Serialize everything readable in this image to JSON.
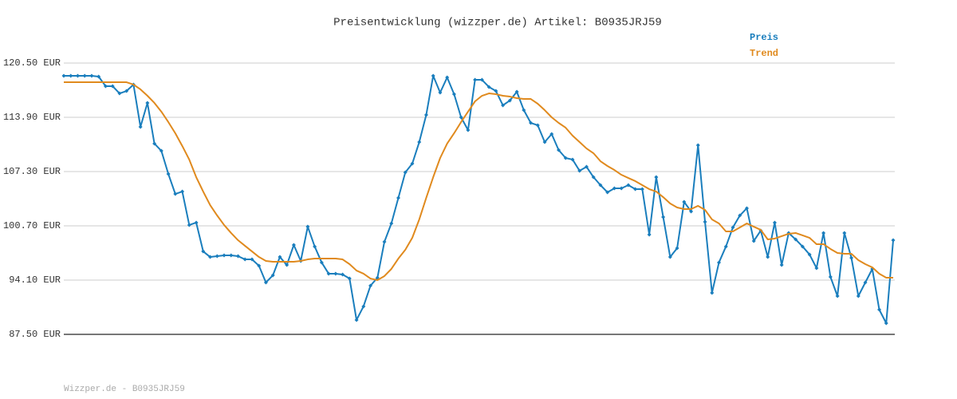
{
  "chart_data": {
    "type": "line",
    "title": "Preisentwicklung (wizzper.de) Artikel: B0935JRJ59",
    "series": [
      {
        "name": "Preis",
        "color": "#1a7ebd",
        "markers": true,
        "values": [
          118.95,
          118.95,
          118.95,
          118.95,
          118.95,
          118.85,
          117.69,
          117.69,
          116.81,
          117.1,
          117.88,
          112.74,
          115.65,
          110.7,
          109.82,
          107.01,
          104.58,
          104.87,
          100.8,
          101.09,
          97.59,
          96.91,
          97.01,
          97.11,
          97.11,
          97.01,
          96.62,
          96.62,
          95.85,
          93.81,
          94.68,
          96.91,
          95.94,
          98.37,
          96.43,
          100.6,
          98.18,
          96.24,
          94.88,
          94.88,
          94.78,
          94.29,
          89.25,
          90.9,
          93.42,
          94.39,
          98.76,
          100.99,
          104.1,
          107.2,
          108.27,
          110.89,
          114.19,
          118.95,
          116.91,
          118.75,
          116.72,
          113.9,
          112.35,
          118.46,
          118.46,
          117.59,
          117.1,
          115.36,
          115.94,
          117.01,
          114.77,
          113.22,
          112.93,
          110.89,
          111.86,
          109.92,
          108.95,
          108.76,
          107.4,
          107.88,
          106.62,
          105.65,
          104.78,
          105.26,
          105.26,
          105.65,
          105.16,
          105.16,
          99.63,
          106.62,
          101.77,
          96.91,
          97.98,
          103.61,
          102.45,
          110.5,
          101.19,
          92.55,
          96.24,
          98.18,
          100.51,
          101.96,
          102.84,
          98.86,
          100.12,
          96.91,
          101.09,
          95.94,
          99.83,
          99.05,
          98.18,
          97.21,
          95.56,
          99.83,
          94.49,
          92.16,
          99.83,
          96.81,
          92.16,
          93.81,
          95.46,
          90.51,
          88.86,
          98.95
        ]
      },
      {
        "name": "Trend",
        "color": "#e08a1e",
        "markers": false,
        "values": [
          118.17,
          118.17,
          118.17,
          118.17,
          118.17,
          118.17,
          118.17,
          118.17,
          118.17,
          118.17,
          117.88,
          117.3,
          116.52,
          115.65,
          114.58,
          113.32,
          111.96,
          110.41,
          108.76,
          106.62,
          104.87,
          103.22,
          101.96,
          100.8,
          99.83,
          98.95,
          98.27,
          97.59,
          96.91,
          96.43,
          96.33,
          96.33,
          96.33,
          96.33,
          96.43,
          96.62,
          96.72,
          96.72,
          96.72,
          96.72,
          96.62,
          96.04,
          95.26,
          94.88,
          94.29,
          94.1,
          94.59,
          95.46,
          96.72,
          97.79,
          99.24,
          101.48,
          104.1,
          106.62,
          108.95,
          110.7,
          111.96,
          113.32,
          114.58,
          115.84,
          116.52,
          116.81,
          116.71,
          116.52,
          116.42,
          116.23,
          116.13,
          116.13,
          115.55,
          114.77,
          113.9,
          113.22,
          112.64,
          111.67,
          110.89,
          110.11,
          109.53,
          108.56,
          107.98,
          107.49,
          106.91,
          106.52,
          106.14,
          105.65,
          105.16,
          104.87,
          104.19,
          103.42,
          102.93,
          102.74,
          102.74,
          103.13,
          102.64,
          101.48,
          100.99,
          100.02,
          100.02,
          100.51,
          100.99,
          100.6,
          100.21,
          99.05,
          99.15,
          99.44,
          99.73,
          99.83,
          99.54,
          99.24,
          98.47,
          98.47,
          97.89,
          97.4,
          97.3,
          97.3,
          96.53,
          96.04,
          95.65,
          94.88,
          94.39,
          94.39
        ]
      }
    ],
    "ylim": [
      87.5,
      120.5
    ],
    "yticks": [
      {
        "value": 87.5,
        "label": "87.50 EUR"
      },
      {
        "value": 94.1,
        "label": "94.10 EUR"
      },
      {
        "value": 100.7,
        "label": "100.70 EUR"
      },
      {
        "value": 107.3,
        "label": "107.30 EUR"
      },
      {
        "value": 113.9,
        "label": "113.90 EUR"
      },
      {
        "value": 120.5,
        "label": "120.50 EUR"
      }
    ],
    "grid": true
  },
  "footer": "Wizzper.de - B0935JRJ59"
}
